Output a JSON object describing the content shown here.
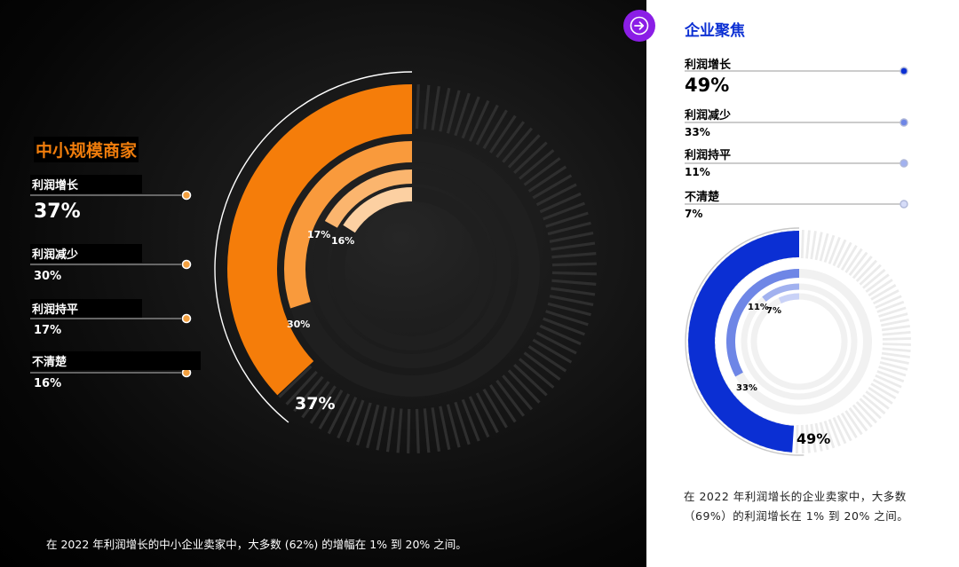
{
  "left": {
    "title": "中小规模商家",
    "items": [
      {
        "label": "利润增长",
        "value": "37%"
      },
      {
        "label": "利润减少",
        "value": "30%"
      },
      {
        "label": "利润持平",
        "value": "17%"
      },
      {
        "label": "不清楚",
        "value": "16%"
      }
    ],
    "caption": "在 2022 年利润增长的中小企业卖家中，大多数 (62%) 的增幅在 1% 到 20% 之间。"
  },
  "right": {
    "title": "企业聚焦",
    "items": [
      {
        "label": "利润增长",
        "value": "49%"
      },
      {
        "label": "利润减少",
        "value": "33%"
      },
      {
        "label": "利润持平",
        "value": "11%"
      },
      {
        "label": "不清楚",
        "value": "7%"
      }
    ],
    "caption": "在 2022 年利润增长的企业卖家中，大多数（69%）的利润增长在 1% 到 20% 之间。"
  },
  "colors": {
    "smb": [
      "#f57d0a",
      "#f99a3c",
      "#fbb56e",
      "#fcd0a2"
    ],
    "enterprise": [
      "#0b2fd3",
      "#6e86e6",
      "#a1b1ef",
      "#c9d2f7"
    ],
    "nav": "#8b1ee6"
  },
  "icons": {
    "nav": "arrow-right-icon"
  },
  "chart_data": [
    {
      "type": "pie",
      "title": "中小规模商家",
      "categories": [
        "利润增长",
        "利润减少",
        "利润持平",
        "不清楚"
      ],
      "values": [
        37,
        30,
        17,
        16
      ],
      "unit": "%"
    },
    {
      "type": "pie",
      "title": "企业聚焦",
      "categories": [
        "利润增长",
        "利润减少",
        "利润持平",
        "不清楚"
      ],
      "values": [
        49,
        33,
        11,
        7
      ],
      "unit": "%"
    }
  ]
}
